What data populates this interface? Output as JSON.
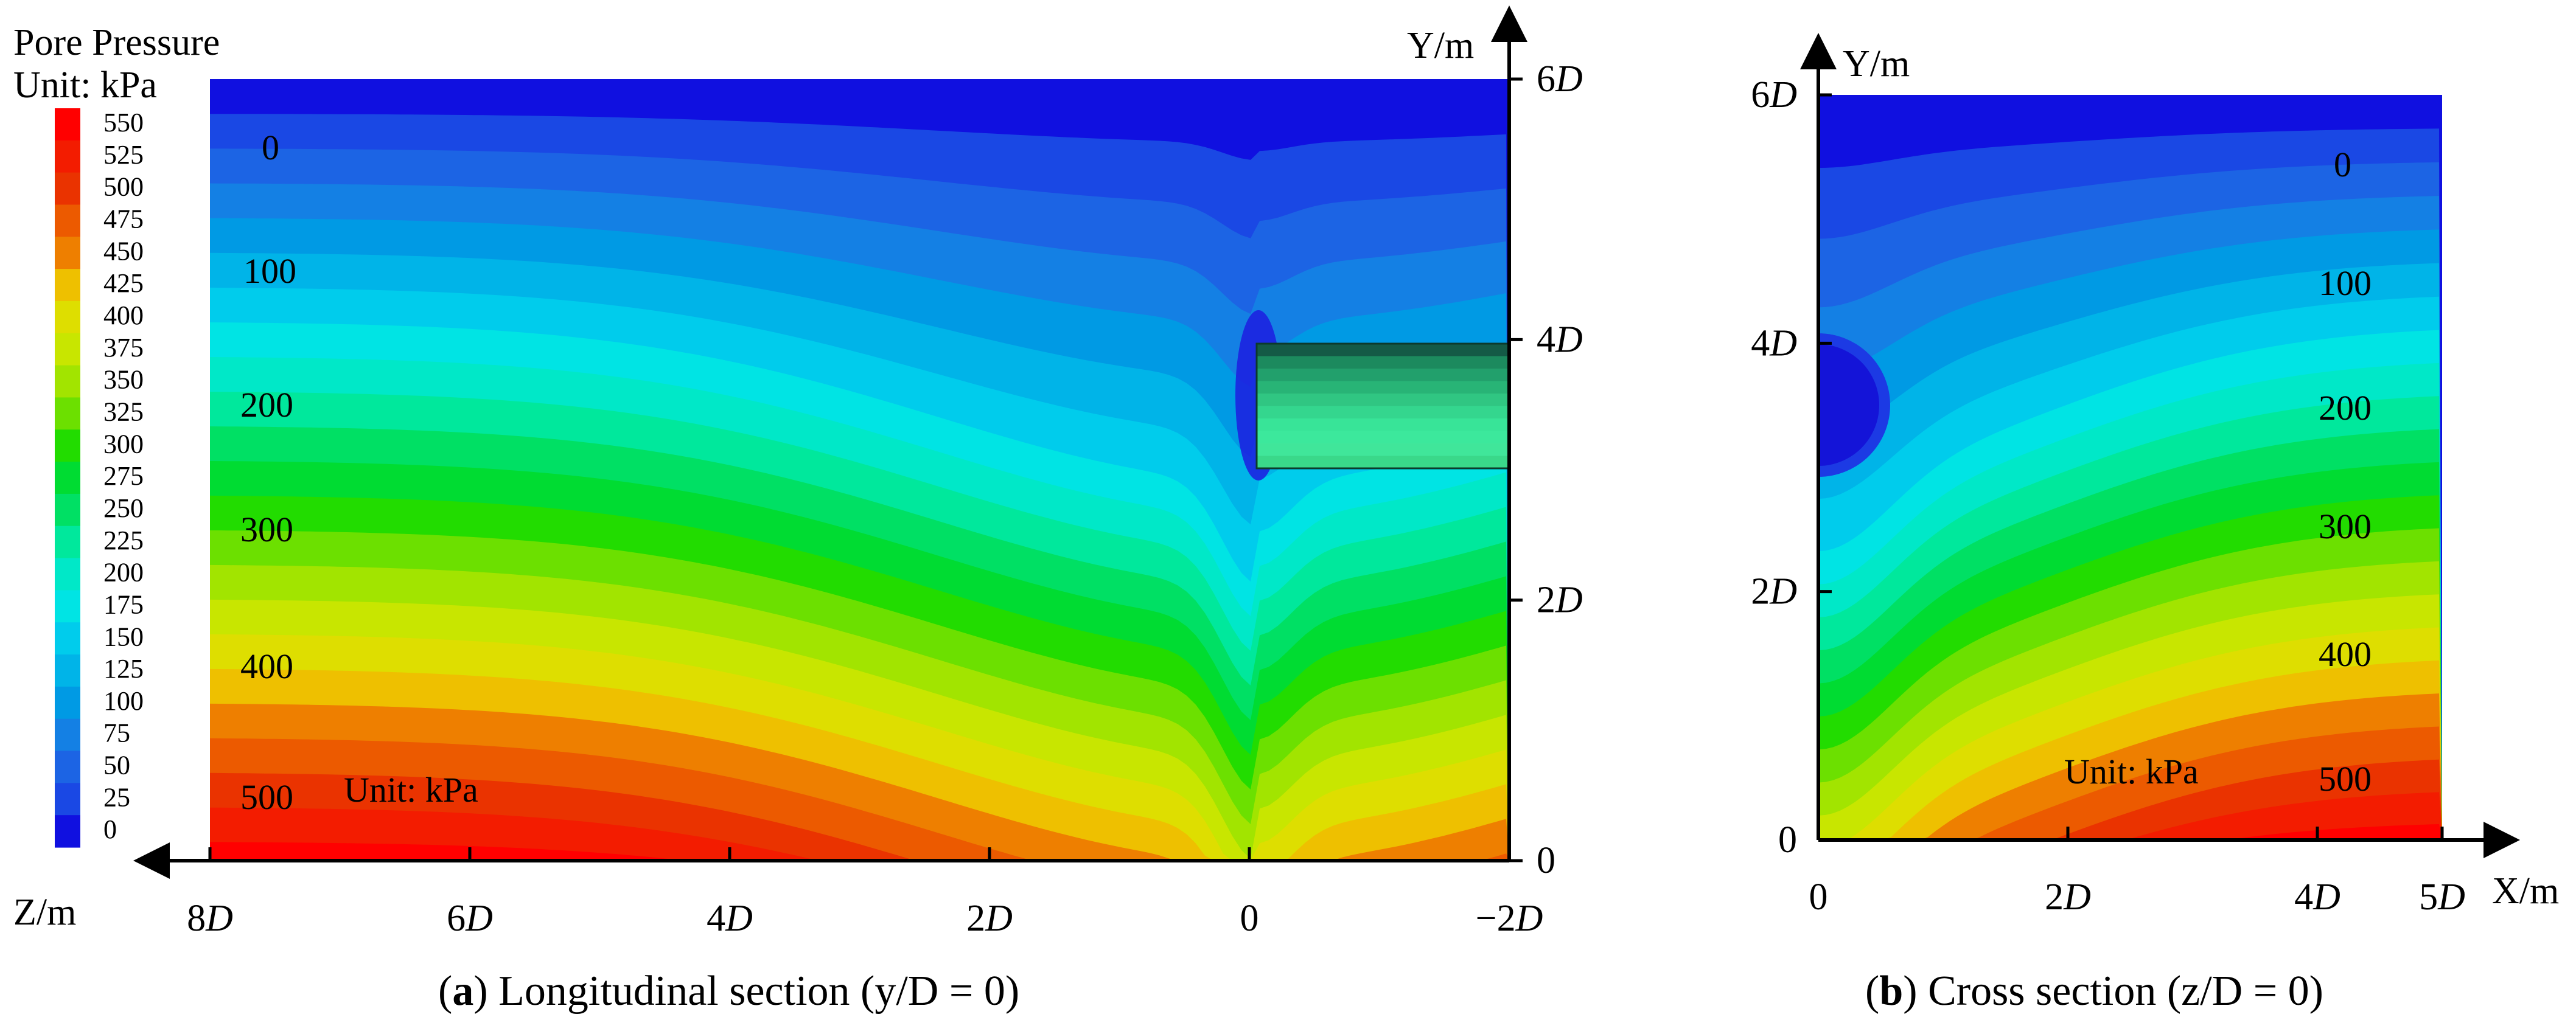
{
  "legend": {
    "title": "Pore Pressure",
    "unit": "Unit: kPa",
    "levels": [
      "550",
      "525",
      "500",
      "475",
      "450",
      "425",
      "400",
      "375",
      "350",
      "325",
      "300",
      "275",
      "250",
      "225",
      "200",
      "175",
      "150",
      "125",
      "100",
      "75",
      "50",
      "25",
      "0"
    ],
    "colors": [
      "#ff0000",
      "#f31c00",
      "#ea3300",
      "#ec5a00",
      "#ee7f00",
      "#eec000",
      "#dede00",
      "#c8e600",
      "#a2e400",
      "#6ce000",
      "#22dc00",
      "#00dc32",
      "#00e064",
      "#00e89c",
      "#00e8c8",
      "#00e4e4",
      "#00ccec",
      "#00b4e8",
      "#009ae4",
      "#1480e4",
      "#1c64e4",
      "#1a48e4",
      "#1010e0"
    ]
  },
  "panel_a": {
    "caption_label": "a",
    "caption_text": "Longitudinal section",
    "caption_condition": "(y/D = 0)",
    "x_axis_title": "Z/m",
    "y_axis_title": "Y/m",
    "x_ticks": [
      "8D",
      "6D",
      "4D",
      "2D",
      "0",
      "−2D"
    ],
    "y_ticks": [
      "0",
      "2D",
      "4D",
      "6D"
    ],
    "contour_labels": [
      "0",
      "100",
      "200",
      "300",
      "400",
      "500"
    ],
    "unit_label": "Unit: kPa"
  },
  "panel_b": {
    "caption_label": "b",
    "caption_text": "Cross section",
    "caption_condition": "(z/D = 0)",
    "x_axis_title": "X/m",
    "y_axis_title": "Y/m",
    "x_ticks": [
      "0",
      "2D",
      "4D",
      "5D"
    ],
    "y_ticks": [
      "0",
      "2D",
      "4D",
      "6D"
    ],
    "contour_labels": [
      "0",
      "100",
      "200",
      "300",
      "400",
      "500"
    ],
    "unit_label": "Unit: kPa"
  },
  "chart_data": [
    {
      "type": "heatmap",
      "title": "Longitudinal section (y/D = 0)",
      "xlabel": "Z/m",
      "ylabel": "Y/m",
      "x_range": [
        "8D",
        "−2D"
      ],
      "y_range": [
        "0",
        "6D"
      ],
      "colorbar": {
        "title": "Pore Pressure",
        "unit": "kPa",
        "min": 0,
        "max": 550,
        "step": 25
      },
      "contour_labels": [
        0,
        100,
        200,
        300,
        400,
        500
      ],
      "annotations": [
        "Unit: kPa"
      ]
    },
    {
      "type": "heatmap",
      "title": "Cross section (z/D = 0)",
      "xlabel": "X/m",
      "ylabel": "Y/m",
      "x_range": [
        "0",
        "5D"
      ],
      "y_range": [
        "0",
        "6D"
      ],
      "colorbar": {
        "title": "Pore Pressure",
        "unit": "kPa",
        "min": 0,
        "max": 550,
        "step": 25
      },
      "contour_labels": [
        0,
        100,
        200,
        300,
        400,
        500
      ],
      "annotations": [
        "Unit: kPa"
      ]
    }
  ]
}
